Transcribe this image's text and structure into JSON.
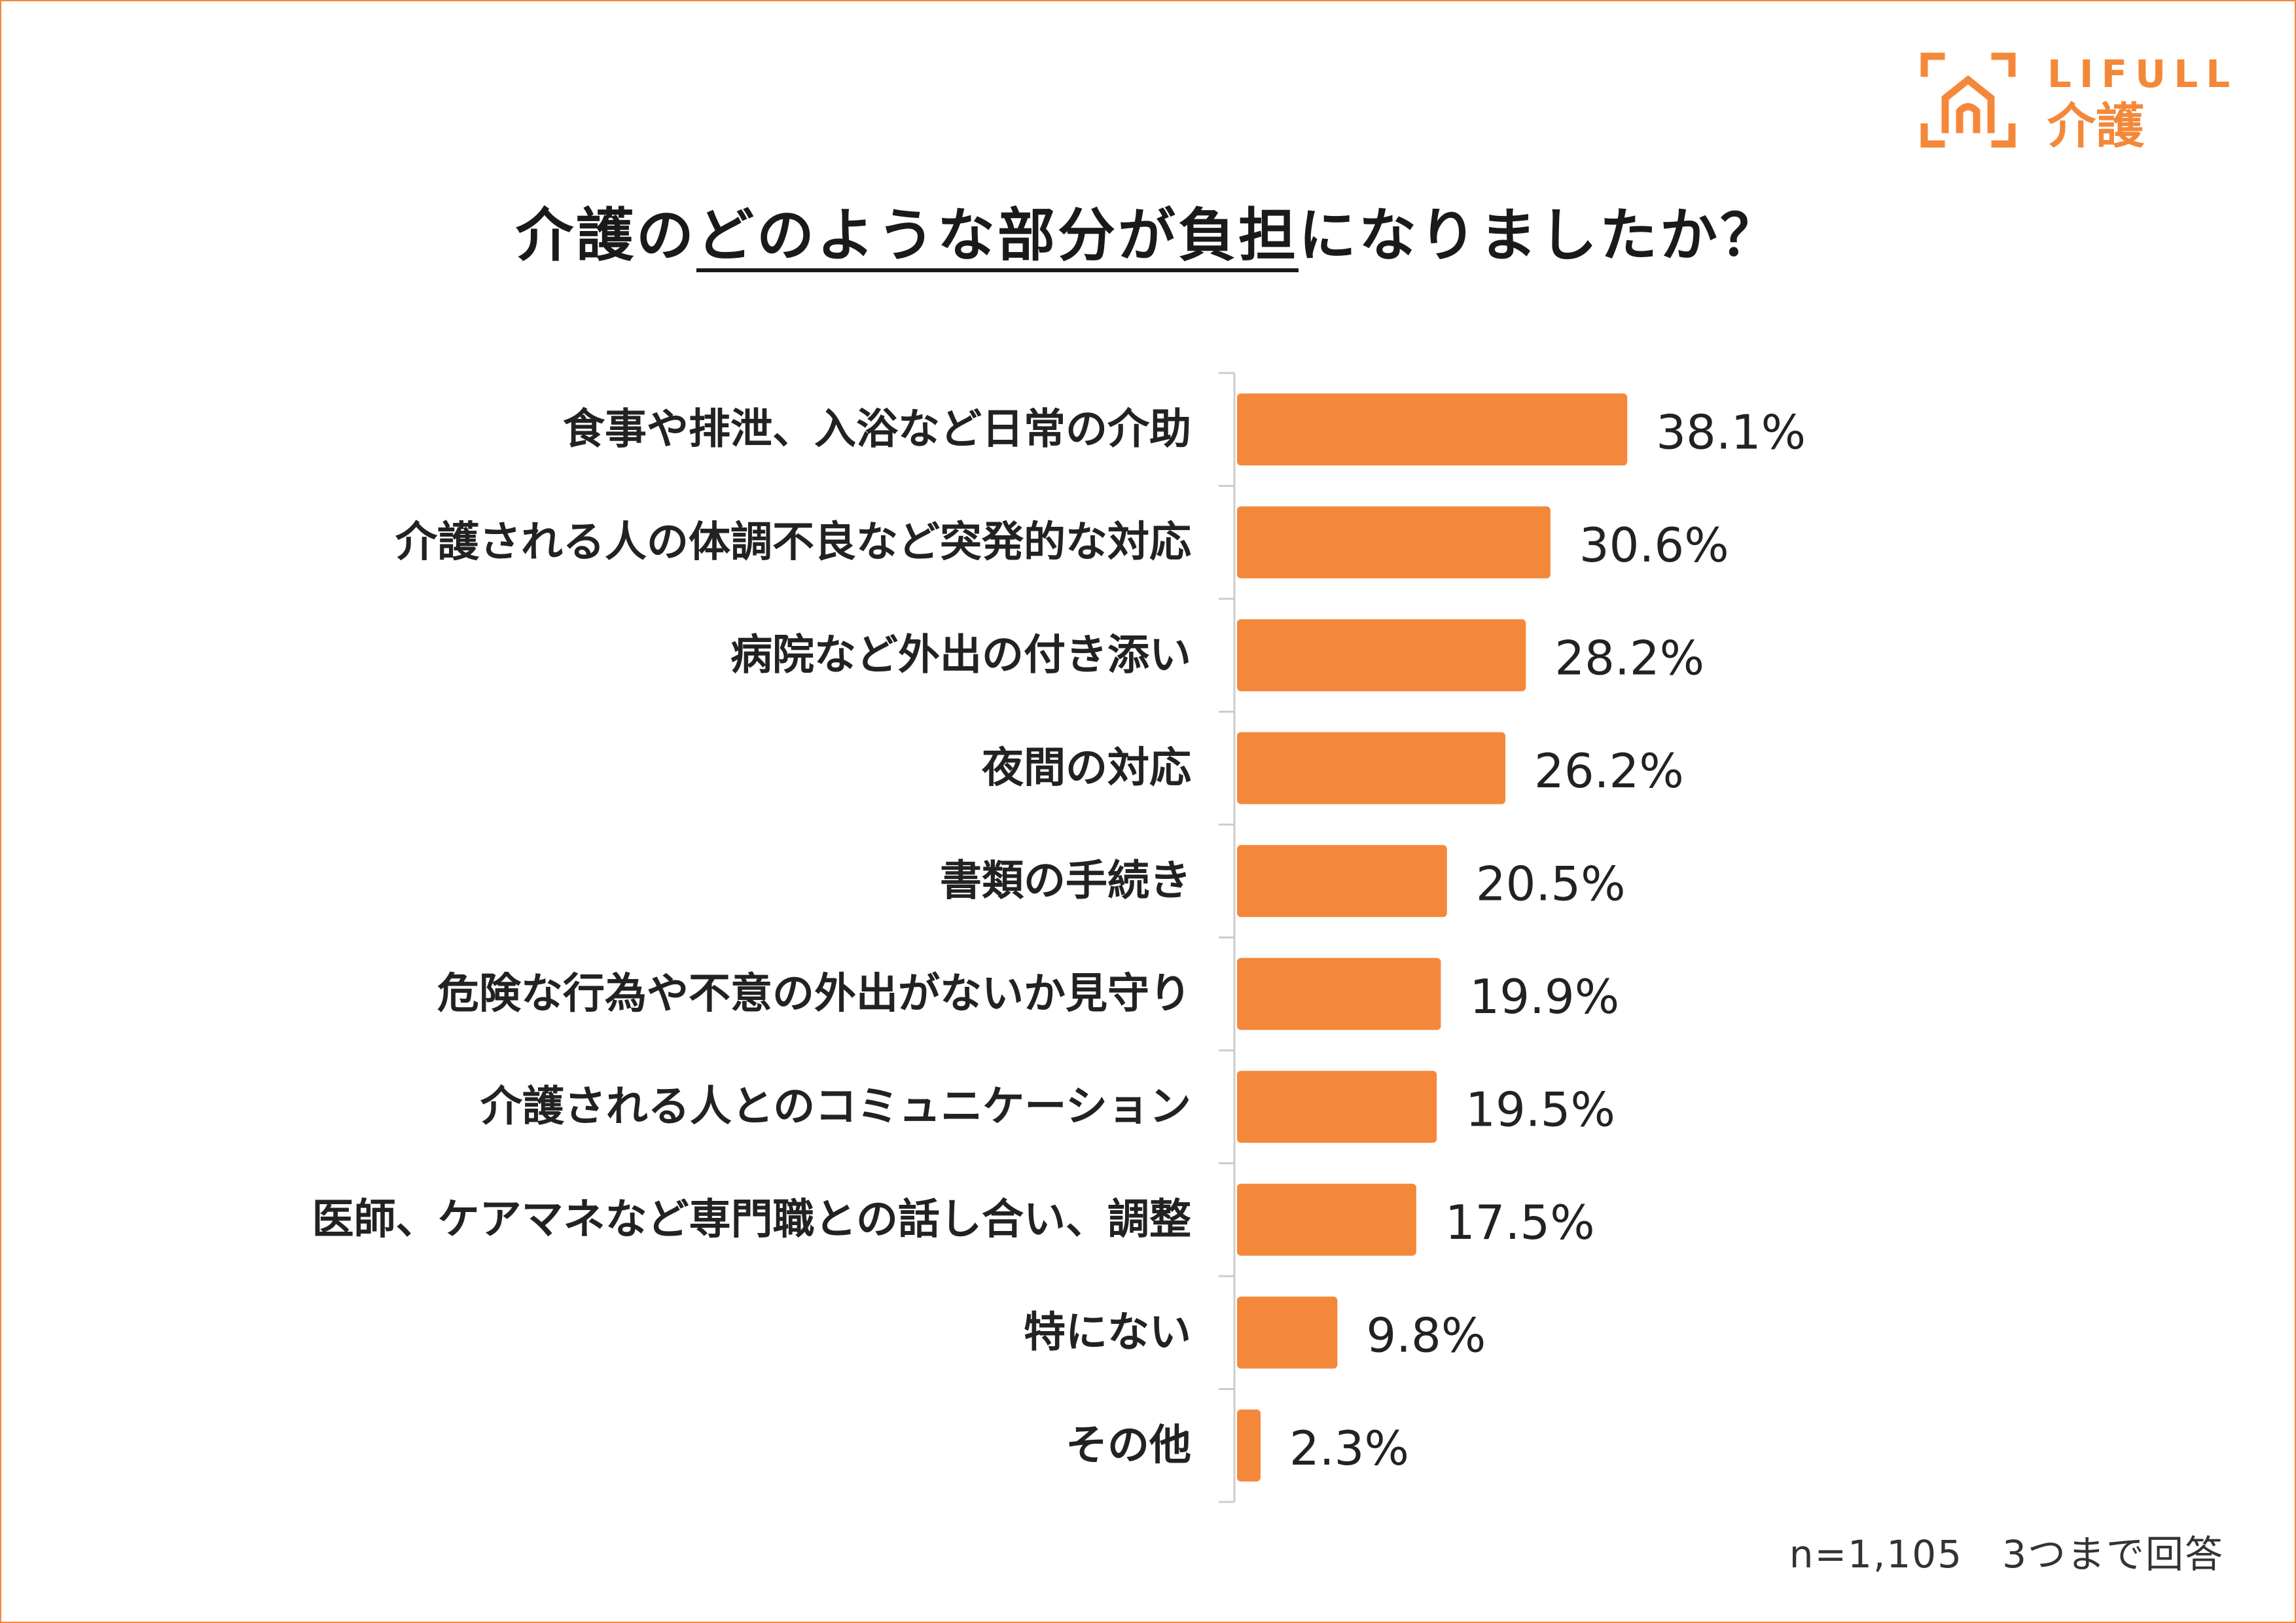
{
  "logo": {
    "brand": "LIFULL",
    "service": "介護"
  },
  "title": {
    "prefix": "介護の",
    "emphasis": "どのような部分が負担",
    "suffix": "になりましたか？"
  },
  "footnote": "n=1,105　3つまで回答",
  "colors": {
    "bar": "#F4883A",
    "frame": "#F4883A",
    "axis": "#cccccc",
    "text": "#222222"
  },
  "chart_data": {
    "type": "bar",
    "orientation": "horizontal",
    "title": "介護のどのような部分が負担になりましたか？",
    "categories": [
      "食事や排泄、入浴など日常の介助",
      "介護される人の体調不良など突発的な対応",
      "病院など外出の付き添い",
      "夜間の対応",
      "書類の手続き",
      "危険な行為や不意の外出がないか見守り",
      "介護される人とのコミュニケーション",
      "医師、ケアマネなど専門職との話し合い、調整",
      "特にない",
      "その他"
    ],
    "values": [
      38.1,
      30.6,
      28.2,
      26.2,
      20.5,
      19.9,
      19.5,
      17.5,
      9.8,
      2.3
    ],
    "value_labels": [
      "38.1%",
      "30.6%",
      "28.2%",
      "26.2%",
      "20.5%",
      "19.9%",
      "19.5%",
      "17.5%",
      "9.8%",
      "2.3%"
    ],
    "unit": "%",
    "xlim": [
      0,
      100
    ],
    "grid": false,
    "legend": "none"
  }
}
